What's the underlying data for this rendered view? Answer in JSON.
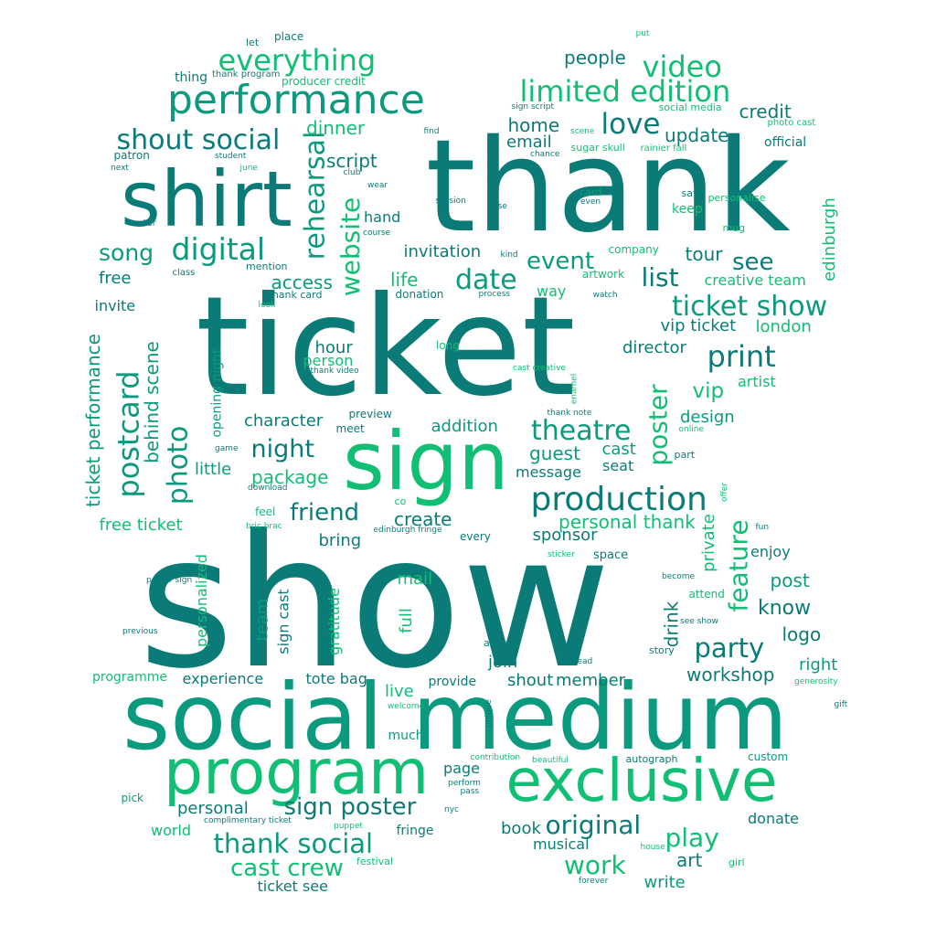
{
  "palette": {
    "dark": "#0b7b78",
    "mid": "#0c9a7f",
    "light": "#10bf74"
  },
  "words": [
    {
      "t": "show",
      "c": "dark"
    },
    {
      "t": "ticket",
      "c": "dark"
    },
    {
      "t": "thank",
      "c": "dark"
    },
    {
      "t": "social medium",
      "c": "mid"
    },
    {
      "t": "sign",
      "c": "light"
    },
    {
      "t": "shirt",
      "c": "dark"
    },
    {
      "t": "program",
      "c": "light"
    },
    {
      "t": "exclusive",
      "c": "light"
    },
    {
      "t": "performance",
      "c": "mid"
    },
    {
      "t": "production",
      "c": "dark"
    },
    {
      "t": "limited edition",
      "c": "light"
    },
    {
      "t": "shout social",
      "c": "dark"
    },
    {
      "t": "everything",
      "c": "light"
    },
    {
      "t": "video",
      "c": "light"
    },
    {
      "t": "digital",
      "c": "mid"
    },
    {
      "t": "love",
      "c": "dark"
    },
    {
      "t": "ticket show",
      "c": "mid"
    },
    {
      "t": "print",
      "c": "dark"
    },
    {
      "t": "date",
      "c": "mid"
    },
    {
      "t": "theatre",
      "c": "mid"
    },
    {
      "t": "party",
      "c": "dark"
    },
    {
      "t": "original",
      "c": "dark"
    },
    {
      "t": "thank social",
      "c": "mid"
    },
    {
      "t": "play",
      "c": "light"
    },
    {
      "t": "work",
      "c": "light"
    },
    {
      "t": "sign poster",
      "c": "dark"
    },
    {
      "t": "cast crew",
      "c": "light"
    },
    {
      "t": "friend",
      "c": "dark"
    },
    {
      "t": "night",
      "c": "dark"
    },
    {
      "t": "song",
      "c": "mid"
    },
    {
      "t": "event",
      "c": "mid"
    },
    {
      "t": "list",
      "c": "dark"
    },
    {
      "t": "see",
      "c": "dark"
    },
    {
      "t": "personal thank",
      "c": "light"
    },
    {
      "t": "package",
      "c": "light"
    },
    {
      "t": "know",
      "c": "dark"
    },
    {
      "t": "workshop",
      "c": "dark"
    },
    {
      "t": "vip",
      "c": "light"
    },
    {
      "t": "update",
      "c": "dark"
    },
    {
      "t": "credit",
      "c": "dark"
    },
    {
      "t": "people",
      "c": "dark"
    },
    {
      "t": "dinner",
      "c": "light"
    },
    {
      "t": "script",
      "c": "dark"
    },
    {
      "t": "home",
      "c": "dark"
    },
    {
      "t": "email",
      "c": "dark"
    },
    {
      "t": "invitation",
      "c": "dark"
    },
    {
      "t": "access",
      "c": "mid"
    },
    {
      "t": "life",
      "c": "light"
    },
    {
      "t": "tour",
      "c": "dark"
    },
    {
      "t": "creative team",
      "c": "light"
    },
    {
      "t": "vip ticket",
      "c": "dark"
    },
    {
      "t": "london",
      "c": "light"
    },
    {
      "t": "director",
      "c": "dark"
    },
    {
      "t": "artist",
      "c": "light"
    },
    {
      "t": "design",
      "c": "mid"
    },
    {
      "t": "hour",
      "c": "dark"
    },
    {
      "t": "person",
      "c": "light"
    },
    {
      "t": "character",
      "c": "dark"
    },
    {
      "t": "addition",
      "c": "mid"
    },
    {
      "t": "guest",
      "c": "mid"
    },
    {
      "t": "cast",
      "c": "mid"
    },
    {
      "t": "seat",
      "c": "dark"
    },
    {
      "t": "message",
      "c": "dark"
    },
    {
      "t": "little",
      "c": "mid"
    },
    {
      "t": "free ticket",
      "c": "light"
    },
    {
      "t": "create",
      "c": "dark"
    },
    {
      "t": "sponsor",
      "c": "dark"
    },
    {
      "t": "bring",
      "c": "dark"
    },
    {
      "t": "mail",
      "c": "light"
    },
    {
      "t": "post",
      "c": "mid"
    },
    {
      "t": "enjoy",
      "c": "dark"
    },
    {
      "t": "logo",
      "c": "dark"
    },
    {
      "t": "right",
      "c": "mid"
    },
    {
      "t": "join",
      "c": "dark"
    },
    {
      "t": "shout",
      "c": "dark"
    },
    {
      "t": "member",
      "c": "dark"
    },
    {
      "t": "experience",
      "c": "dark"
    },
    {
      "t": "tote bag",
      "c": "dark"
    },
    {
      "t": "programme",
      "c": "light"
    },
    {
      "t": "live",
      "c": "light"
    },
    {
      "t": "provide",
      "c": "dark"
    },
    {
      "t": "page",
      "c": "dark"
    },
    {
      "t": "much",
      "c": "mid"
    },
    {
      "t": "personal",
      "c": "dark"
    },
    {
      "t": "world",
      "c": "light"
    },
    {
      "t": "fringe",
      "c": "dark"
    },
    {
      "t": "book",
      "c": "dark"
    },
    {
      "t": "musical",
      "c": "dark"
    },
    {
      "t": "art",
      "c": "dark"
    },
    {
      "t": "write",
      "c": "mid"
    },
    {
      "t": "donate",
      "c": "dark"
    },
    {
      "t": "custom",
      "c": "mid"
    },
    {
      "t": "ticket see",
      "c": "dark"
    },
    {
      "t": "free",
      "c": "dark"
    },
    {
      "t": "invite",
      "c": "dark"
    },
    {
      "t": "story",
      "c": "dark"
    },
    {
      "t": "way",
      "c": "light"
    },
    {
      "t": "official",
      "c": "dark"
    },
    {
      "t": "keep",
      "c": "light"
    },
    {
      "t": "say",
      "c": "dark"
    },
    {
      "t": "hand",
      "c": "dark"
    },
    {
      "t": "place",
      "c": "dark"
    },
    {
      "t": "let",
      "c": "dark"
    },
    {
      "t": "thing",
      "c": "dark"
    },
    {
      "t": "producer credit",
      "c": "light"
    },
    {
      "t": "patron",
      "c": "dark"
    },
    {
      "t": "pick",
      "c": "mid"
    },
    {
      "t": "rehearsal",
      "c": "mid"
    },
    {
      "t": "website",
      "c": "light"
    },
    {
      "t": "postcard",
      "c": "mid"
    },
    {
      "t": "photo",
      "c": "mid"
    },
    {
      "t": "behind scene",
      "c": "mid"
    },
    {
      "t": "ticket performance",
      "c": "mid"
    },
    {
      "t": "opening night",
      "c": "mid"
    },
    {
      "t": "poster",
      "c": "light"
    },
    {
      "t": "feature",
      "c": "light"
    },
    {
      "t": "private",
      "c": "light"
    },
    {
      "t": "drink",
      "c": "dark"
    },
    {
      "t": "edinburgh",
      "c": "light"
    },
    {
      "t": "team",
      "c": "mid"
    },
    {
      "t": "sign cast",
      "c": "dark"
    },
    {
      "t": "gratitude",
      "c": "light"
    },
    {
      "t": "full",
      "c": "light"
    },
    {
      "t": "personalized",
      "c": "light"
    },
    {
      "t": "put",
      "c": "light"
    },
    {
      "t": "thank program",
      "c": "dark"
    },
    {
      "t": "student",
      "c": "dark"
    },
    {
      "t": "june",
      "c": "light"
    },
    {
      "t": "next",
      "c": "dark"
    },
    {
      "t": "sign script",
      "c": "dark"
    },
    {
      "t": "social media",
      "c": "light"
    },
    {
      "t": "photo cast",
      "c": "light"
    },
    {
      "t": "scene",
      "c": "light"
    },
    {
      "t": "sugar skull",
      "c": "light"
    },
    {
      "t": "rainier fall",
      "c": "light"
    },
    {
      "t": "find",
      "c": "dark"
    },
    {
      "t": "chance",
      "c": "dark"
    },
    {
      "t": "club",
      "c": "dark"
    },
    {
      "t": "wear",
      "c": "dark"
    },
    {
      "t": "session",
      "c": "dark"
    },
    {
      "t": "card",
      "c": "mid"
    },
    {
      "t": "even",
      "c": "dark"
    },
    {
      "t": "base",
      "c": "dark"
    },
    {
      "t": "personalise",
      "c": "light"
    },
    {
      "t": "mug",
      "c": "light"
    },
    {
      "t": "actor",
      "c": "dark"
    },
    {
      "t": "course",
      "c": "dark"
    },
    {
      "t": "kind",
      "c": "dark"
    },
    {
      "t": "company",
      "c": "light"
    },
    {
      "t": "mention",
      "c": "dark"
    },
    {
      "t": "class",
      "c": "dark"
    },
    {
      "t": "artwork",
      "c": "light"
    },
    {
      "t": "thank card",
      "c": "dark"
    },
    {
      "t": "donation",
      "c": "dark"
    },
    {
      "t": "process",
      "c": "dark"
    },
    {
      "t": "watch",
      "c": "dark"
    },
    {
      "t": "look",
      "c": "light"
    },
    {
      "t": "long",
      "c": "light"
    },
    {
      "t": "cast creative",
      "c": "light"
    },
    {
      "t": "thank video",
      "c": "dark"
    },
    {
      "t": "enamel",
      "c": "light"
    },
    {
      "t": "preview",
      "c": "dark"
    },
    {
      "t": "meet",
      "c": "dark"
    },
    {
      "t": "thank note",
      "c": "dark"
    },
    {
      "t": "online",
      "c": "light"
    },
    {
      "t": "game",
      "c": "dark"
    },
    {
      "t": "part",
      "c": "dark"
    },
    {
      "t": "co",
      "c": "light"
    },
    {
      "t": "offer",
      "c": "light"
    },
    {
      "t": "feel",
      "c": "light"
    },
    {
      "t": "download",
      "c": "dark"
    },
    {
      "t": "bric brac",
      "c": "light"
    },
    {
      "t": "edinburgh fringe",
      "c": "dark"
    },
    {
      "t": "every",
      "c": "dark"
    },
    {
      "t": "fun",
      "c": "dark"
    },
    {
      "t": "sticker",
      "c": "light"
    },
    {
      "t": "space",
      "c": "dark"
    },
    {
      "t": "become",
      "c": "dark"
    },
    {
      "t": "poster sign",
      "c": "dark"
    },
    {
      "t": "attend",
      "c": "light"
    },
    {
      "t": "previous",
      "c": "dark"
    },
    {
      "t": "see show",
      "c": "dark"
    },
    {
      "t": "album",
      "c": "dark"
    },
    {
      "t": "read",
      "c": "dark"
    },
    {
      "t": "generosity",
      "c": "light"
    },
    {
      "t": "welcome",
      "c": "light"
    },
    {
      "t": "unique",
      "c": "dark"
    },
    {
      "t": "gift",
      "c": "dark"
    },
    {
      "t": "contribution",
      "c": "light"
    },
    {
      "t": "beautiful",
      "c": "light"
    },
    {
      "t": "autograph",
      "c": "dark"
    },
    {
      "t": "perform",
      "c": "dark"
    },
    {
      "t": "pass",
      "c": "dark"
    },
    {
      "t": "nyc",
      "c": "dark"
    },
    {
      "t": "complimentary ticket",
      "c": "dark"
    },
    {
      "t": "puppet",
      "c": "light"
    },
    {
      "t": "festival",
      "c": "light"
    },
    {
      "t": "house",
      "c": "light"
    },
    {
      "t": "forever",
      "c": "dark"
    },
    {
      "t": "girl",
      "c": "light"
    }
  ]
}
